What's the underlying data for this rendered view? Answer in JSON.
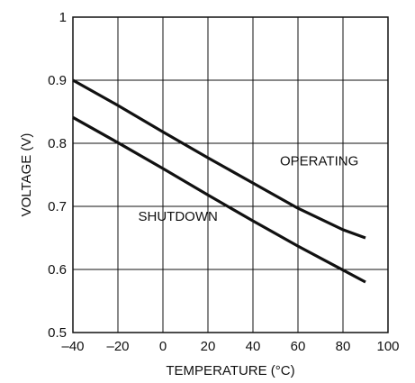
{
  "chart_data": {
    "type": "line",
    "title": "",
    "xlabel": "TEMPERATURE (°C)",
    "ylabel": "VOLTAGE (V)",
    "xlim": [
      -40,
      100
    ],
    "ylim": [
      0.5,
      1.0
    ],
    "grid": true,
    "x_ticks": [
      {
        "value": -40,
        "label": "–40"
      },
      {
        "value": -20,
        "label": "–20"
      },
      {
        "value": 0,
        "label": "0"
      },
      {
        "value": 20,
        "label": "20"
      },
      {
        "value": 40,
        "label": "40"
      },
      {
        "value": 60,
        "label": "60"
      },
      {
        "value": 80,
        "label": "80"
      },
      {
        "value": 100,
        "label": "100"
      }
    ],
    "y_ticks": [
      {
        "value": 0.5,
        "label": "0.5"
      },
      {
        "value": 0.6,
        "label": "0.6"
      },
      {
        "value": 0.7,
        "label": "0.7"
      },
      {
        "value": 0.8,
        "label": "0.8"
      },
      {
        "value": 0.9,
        "label": "0.9"
      },
      {
        "value": 1.0,
        "label": "1"
      }
    ],
    "series": [
      {
        "name": "OPERATING",
        "x": [
          -40,
          -20,
          0,
          20,
          40,
          60,
          80,
          90
        ],
        "y": [
          0.9,
          0.86,
          0.818,
          0.777,
          0.737,
          0.697,
          0.663,
          0.65
        ]
      },
      {
        "name": "SHUTDOWN",
        "x": [
          -40,
          -20,
          0,
          20,
          40,
          60,
          80,
          90
        ],
        "y": [
          0.841,
          0.801,
          0.76,
          0.718,
          0.677,
          0.637,
          0.599,
          0.58
        ]
      }
    ]
  }
}
